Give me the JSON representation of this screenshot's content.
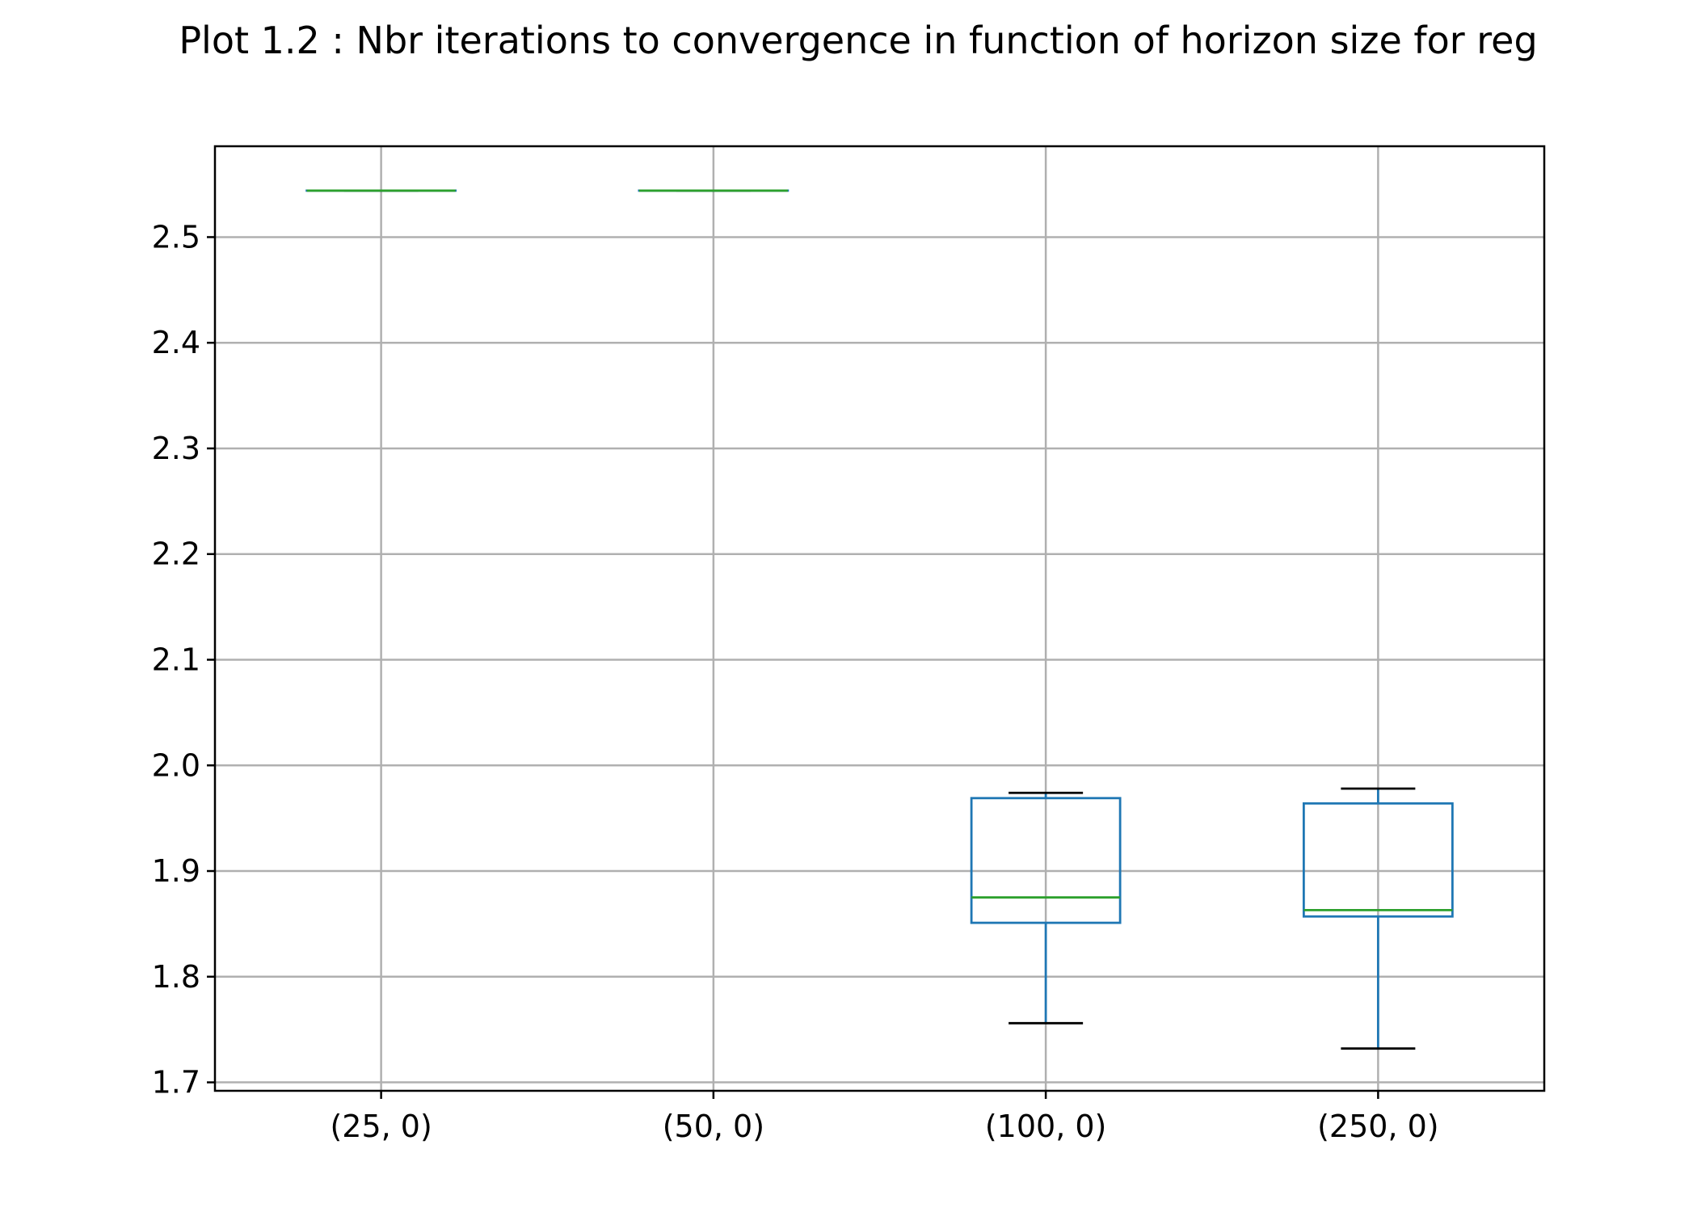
{
  "chart_data": {
    "type": "box",
    "title": "Plot 1.2 : Nbr iterations to convergence in function of horizon size for reg",
    "xlabel": "",
    "ylabel": "",
    "ylim": [
      1.692,
      2.586
    ],
    "yticks": [
      "1.7",
      "1.8",
      "1.9",
      "2.0",
      "2.1",
      "2.2",
      "2.3",
      "2.4",
      "2.5"
    ],
    "categories": [
      "(25, 0)",
      "(50, 0)",
      "(100, 0)",
      "(250, 0)"
    ],
    "grid": true,
    "legend": "none",
    "colors": {
      "box": "#1f77b4",
      "median": "#2ca02c",
      "whisker_cap": "#000000",
      "grid": "#b0b0b0",
      "axes": "#000000"
    },
    "boxes": [
      {
        "category": "(25, 0)",
        "whislo": 2.544,
        "q1": 2.544,
        "median": 2.544,
        "q3": 2.544,
        "whishi": 2.544
      },
      {
        "category": "(50, 0)",
        "whislo": 2.544,
        "q1": 2.544,
        "median": 2.544,
        "q3": 2.544,
        "whishi": 2.544
      },
      {
        "category": "(100, 0)",
        "whislo": 1.756,
        "q1": 1.851,
        "median": 1.875,
        "q3": 1.969,
        "whishi": 1.974
      },
      {
        "category": "(250, 0)",
        "whislo": 1.732,
        "q1": 1.857,
        "median": 1.863,
        "q3": 1.964,
        "whishi": 1.978
      }
    ]
  }
}
